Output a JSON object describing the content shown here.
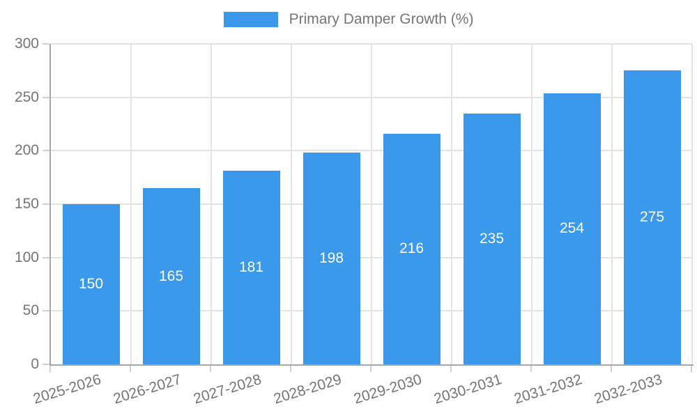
{
  "chart_data": {
    "type": "bar",
    "title": "",
    "xlabel": "",
    "ylabel": "",
    "legend": "Primary Damper Growth (%)",
    "legend_position": "top",
    "categories": [
      "2025-2026",
      "2026-2027",
      "2027-2028",
      "2028-2029",
      "2029-2030",
      "2030-2031",
      "2031-2032",
      "2032-2033"
    ],
    "values": [
      150,
      165,
      181,
      198,
      216,
      235,
      254,
      275
    ],
    "ylim": [
      0,
      300
    ],
    "yticks": [
      0,
      50,
      100,
      150,
      200,
      250,
      300
    ],
    "grid": true,
    "colors": {
      "bar": "#3A99EB",
      "value_label": "#FFFFFF",
      "axis_text": "#757575",
      "gridline": "#E4E4E4",
      "axis_line": "#A6A6A6",
      "tick_mark": "#CFCFCF"
    }
  }
}
